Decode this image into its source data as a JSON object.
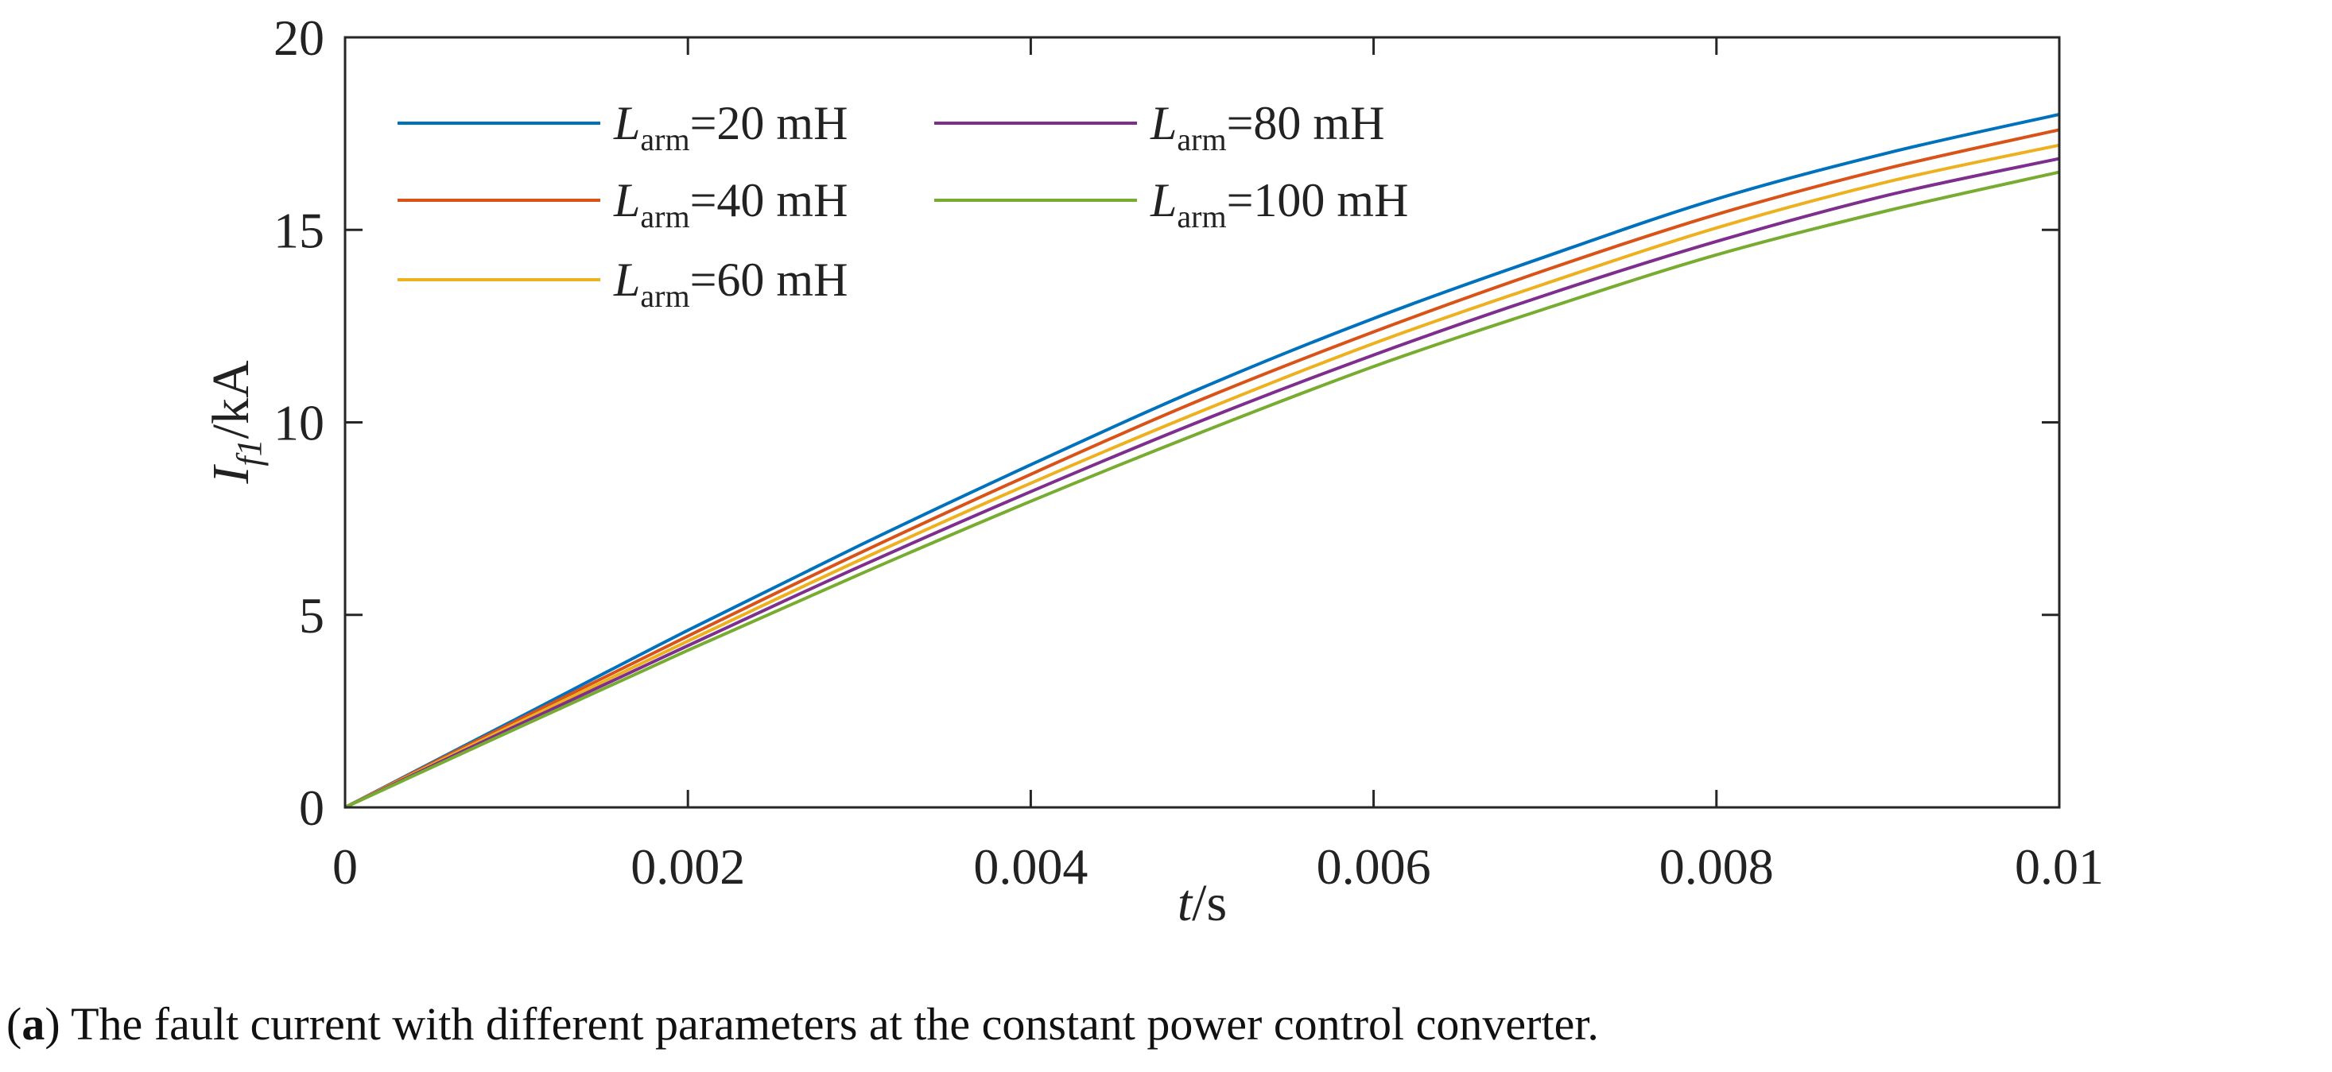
{
  "caption": {
    "label": "a",
    "text": "The fault current with different parameters at the constant power control converter."
  },
  "chart_data": {
    "type": "line",
    "xlabel_var": "t",
    "xlabel_unit": "/s",
    "ylabel_var": "I",
    "ylabel_sub": "f1",
    "ylabel_unit": "/kA",
    "xlim": [
      0,
      0.01
    ],
    "ylim": [
      0,
      20
    ],
    "xticks": [
      0,
      0.002,
      0.004,
      0.006,
      0.008,
      0.01
    ],
    "xtick_labels": [
      "0",
      "0.002",
      "0.004",
      "0.006",
      "0.008",
      "0.01"
    ],
    "yticks": [
      0,
      5,
      10,
      15,
      20
    ],
    "ytick_labels": [
      "0",
      "5",
      "10",
      "15",
      "20"
    ],
    "grid": false,
    "legend_position": "top-left",
    "x": [
      0,
      0.001,
      0.002,
      0.003,
      0.004,
      0.005,
      0.006,
      0.007,
      0.008,
      0.009,
      0.01
    ],
    "series": [
      {
        "name_var": "L",
        "name_sub": "arm",
        "name_rest": "=20 mH",
        "color": "#0072BD",
        "values": [
          0,
          2.3,
          4.6,
          6.8,
          8.9,
          10.9,
          12.7,
          14.3,
          15.8,
          17.0,
          18.0
        ]
      },
      {
        "name_var": "L",
        "name_sub": "arm",
        "name_rest": "=40 mH",
        "color": "#D95319",
        "values": [
          0,
          2.25,
          4.45,
          6.6,
          8.65,
          10.6,
          12.35,
          13.95,
          15.4,
          16.6,
          17.6
        ]
      },
      {
        "name_var": "L",
        "name_sub": "arm",
        "name_rest": "=60 mH",
        "color": "#EDB120",
        "values": [
          0,
          2.18,
          4.32,
          6.42,
          8.42,
          10.3,
          12.05,
          13.6,
          15.05,
          16.25,
          17.2
        ]
      },
      {
        "name_var": "L",
        "name_sub": "arm",
        "name_rest": "=80 mH",
        "color": "#7E2F8E",
        "values": [
          0,
          2.12,
          4.2,
          6.25,
          8.2,
          10.05,
          11.75,
          13.3,
          14.7,
          15.9,
          16.85
        ]
      },
      {
        "name_var": "L",
        "name_sub": "arm",
        "name_rest": "=100 mH",
        "color": "#77AC30",
        "values": [
          0,
          2.05,
          4.08,
          6.05,
          7.95,
          9.75,
          11.45,
          12.95,
          14.35,
          15.5,
          16.5
        ]
      }
    ]
  }
}
